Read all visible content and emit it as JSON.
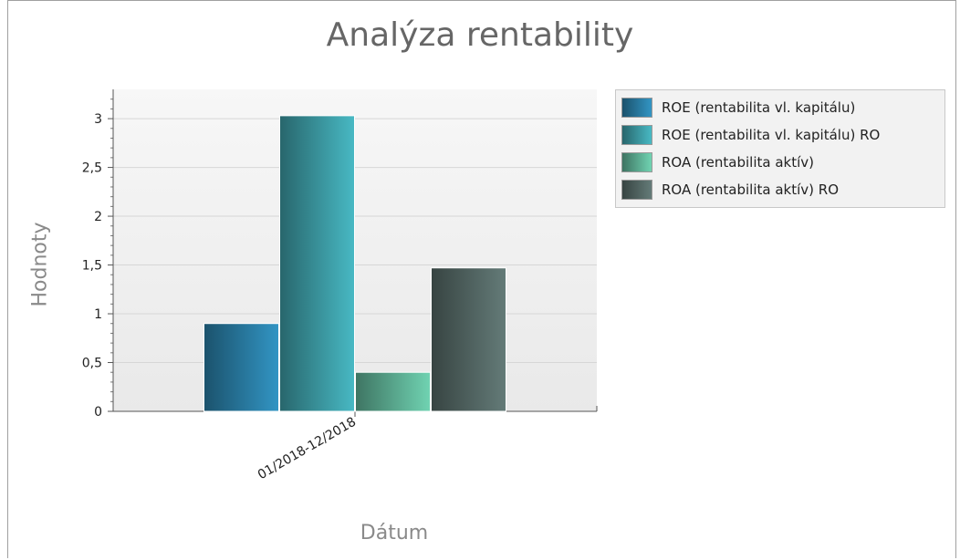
{
  "chart_data": {
    "type": "bar",
    "title": "Analýza rentability",
    "xlabel": "Dátum",
    "ylabel": "Hodnoty",
    "categories": [
      "01/2018-12/2018"
    ],
    "series": [
      {
        "name": "ROE (rentabilita vl. kapitálu)",
        "values": [
          0.9
        ],
        "color": "#2a7ea6"
      },
      {
        "name": "ROE (rentabilita vl. kapitálu) RO",
        "values": [
          3.03
        ],
        "color": "#3d9da6"
      },
      {
        "name": "ROA (rentabilita aktív)",
        "values": [
          0.4
        ],
        "color": "#5fb397"
      },
      {
        "name": "ROA (rentabilita aktív) RO",
        "values": [
          1.47
        ],
        "color": "#556866"
      }
    ],
    "yticks": [
      "0",
      "0,5",
      "1",
      "1,5",
      "2",
      "2,5",
      "3"
    ],
    "ylim": [
      0,
      3.3
    ],
    "grid": true,
    "legend_position": "top-right"
  }
}
